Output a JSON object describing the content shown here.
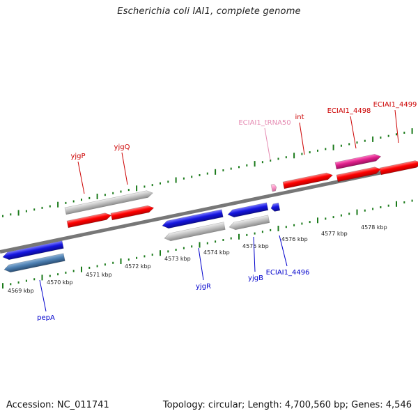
{
  "title": "Escherichia coli IAI1, complete genome",
  "footer": {
    "accession": "Accession: NC_011741",
    "summary": "Topology: circular; Length: 4,700,560 bp; Genes: 4,546"
  },
  "colors": {
    "forward_gene": "#ff0000",
    "reverse_gene": "#1515e0",
    "cds_grey": "#c4c4c4",
    "reverse_cds": "#4d80b3",
    "trna": "#ff99cc",
    "pink_feature": "#e0208c",
    "tick": "#1a7a1a",
    "backbone": "#777777",
    "forward_label": "#cc0000",
    "reverse_label": "#0000cc",
    "trna_label": "#e58ab2"
  },
  "scale": {
    "unit": "kbp",
    "labels": [
      {
        "text": "4569 kbp"
      },
      {
        "text": "4570 kbp"
      },
      {
        "text": "4571 kbp"
      },
      {
        "text": "4572 kbp"
      },
      {
        "text": "4573 kbp"
      },
      {
        "text": "4574 kbp"
      },
      {
        "text": "4575 kbp"
      },
      {
        "text": "4576 kbp"
      },
      {
        "text": "4577 kbp"
      },
      {
        "text": "4578 kbp"
      }
    ]
  },
  "genes": [
    {
      "name": "pepA",
      "strand": "reverse",
      "type": "gene"
    },
    {
      "name": "yjgP",
      "strand": "forward",
      "type": "gene"
    },
    {
      "name": "yjgQ",
      "strand": "forward",
      "type": "gene"
    },
    {
      "name": "yjgR",
      "strand": "reverse",
      "type": "gene"
    },
    {
      "name": "yjgB",
      "strand": "reverse",
      "type": "gene"
    },
    {
      "name": "ECIAI1_4496",
      "strand": "reverse",
      "type": "gene"
    },
    {
      "name": "ECIAI1_tRNA50",
      "strand": "forward",
      "type": "tRNA"
    },
    {
      "name": "int",
      "strand": "forward",
      "type": "gene"
    },
    {
      "name": "ECIAI1_4498",
      "strand": "forward",
      "type": "gene"
    },
    {
      "name": "ECIAI1_4499",
      "strand": "forward",
      "type": "gene"
    }
  ]
}
